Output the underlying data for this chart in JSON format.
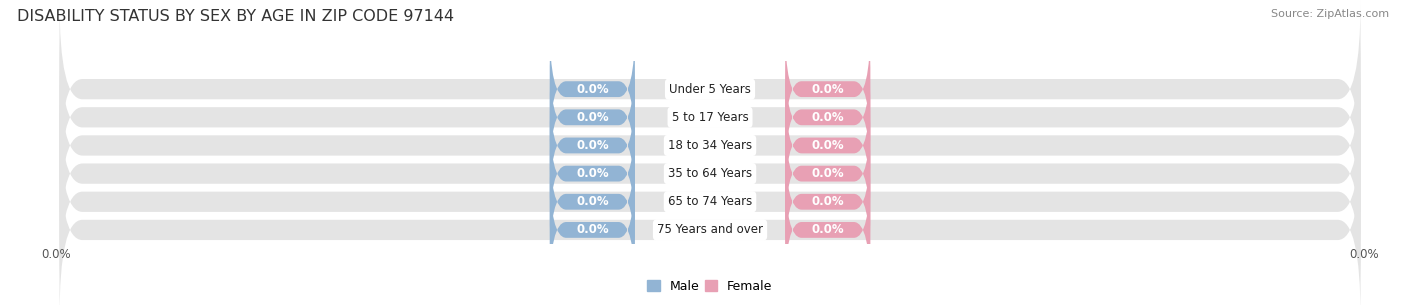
{
  "title": "DISABILITY STATUS BY SEX BY AGE IN ZIP CODE 97144",
  "source": "Source: ZipAtlas.com",
  "categories": [
    "Under 5 Years",
    "5 to 17 Years",
    "18 to 34 Years",
    "35 to 64 Years",
    "65 to 74 Years",
    "75 Years and over"
  ],
  "male_values": [
    0.0,
    0.0,
    0.0,
    0.0,
    0.0,
    0.0
  ],
  "female_values": [
    0.0,
    0.0,
    0.0,
    0.0,
    0.0,
    0.0
  ],
  "male_color": "#92b4d4",
  "female_color": "#e8a0b4",
  "male_label": "Male",
  "female_label": "Female",
  "row_bg_color": "#e4e4e4",
  "title_color": "#333333",
  "background_color": "#ffffff",
  "title_fontsize": 11.5,
  "source_fontsize": 8,
  "figsize": [
    14.06,
    3.05
  ],
  "dpi": 100
}
